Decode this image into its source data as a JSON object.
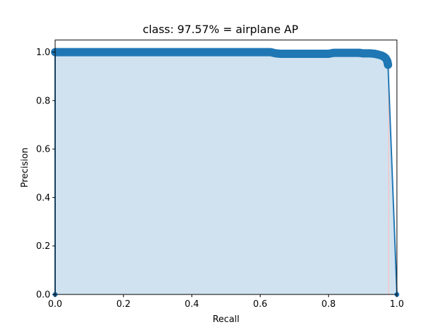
{
  "chart_data": {
    "type": "area",
    "title": "class: 97.57% = airplane AP",
    "xlabel": "Recall",
    "ylabel": "Precision",
    "xlim": [
      0,
      1
    ],
    "ylim": [
      0,
      1.05
    ],
    "xticks": [
      "0.0",
      "0.2",
      "0.4",
      "0.6",
      "0.8",
      "1.0"
    ],
    "yticks": [
      "0.0",
      "0.2",
      "0.4",
      "0.6",
      "0.8",
      "1.0"
    ],
    "grid": false,
    "legend": "none",
    "series": [
      {
        "points": [
          [
            0.0,
            0.0
          ],
          [
            0.0,
            1.0
          ],
          [
            0.05,
            1.0
          ],
          [
            0.1,
            1.0
          ],
          [
            0.15,
            1.0
          ],
          [
            0.2,
            1.0
          ],
          [
            0.25,
            1.0
          ],
          [
            0.3,
            1.0
          ],
          [
            0.35,
            1.0
          ],
          [
            0.4,
            1.0
          ],
          [
            0.45,
            1.0
          ],
          [
            0.5,
            1.0
          ],
          [
            0.55,
            1.0
          ],
          [
            0.6,
            1.0
          ],
          [
            0.63,
            1.0
          ],
          [
            0.645,
            0.995
          ],
          [
            0.66,
            0.993
          ],
          [
            0.68,
            0.993
          ],
          [
            0.7,
            0.993
          ],
          [
            0.72,
            0.993
          ],
          [
            0.74,
            0.993
          ],
          [
            0.76,
            0.993
          ],
          [
            0.78,
            0.993
          ],
          [
            0.8,
            0.993
          ],
          [
            0.815,
            0.997
          ],
          [
            0.83,
            0.997
          ],
          [
            0.85,
            0.997
          ],
          [
            0.87,
            0.997
          ],
          [
            0.89,
            0.997
          ],
          [
            0.9,
            0.995
          ],
          [
            0.92,
            0.995
          ],
          [
            0.935,
            0.993
          ],
          [
            0.945,
            0.99
          ],
          [
            0.955,
            0.986
          ],
          [
            0.962,
            0.981
          ],
          [
            0.967,
            0.975
          ],
          [
            0.97,
            0.968
          ],
          [
            0.972,
            0.962
          ],
          [
            0.973,
            0.955
          ],
          [
            0.974,
            0.948
          ],
          [
            1.0,
            0.0
          ]
        ],
        "color": "#1f77b4"
      }
    ],
    "fill_color": "#d0e2f0",
    "drop_line_color": "#f4c7c7",
    "drop_line_x": 0.9757
  }
}
